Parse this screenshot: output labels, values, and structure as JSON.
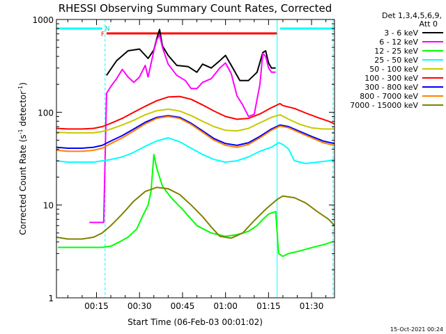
{
  "chart_data": {
    "type": "line",
    "title": "RHESSI Observing Summary Count Rates, Corrected",
    "xlabel": "Start Time (06-Feb-03 00:01:02)",
    "ylabel": "Corrected Count Rate (s⁻¹ detector⁻¹)",
    "ylabel_main": "Corrected Count Rate (s",
    "ylabel_sup1": "-1",
    "ylabel_mid": " detector",
    "ylabel_sup2": "-1",
    "ylabel_end": ")",
    "yscale": "log",
    "ylim": [
      1,
      1000
    ],
    "xlim": [
      1.03,
      98
    ],
    "y_tick_labels": [
      "1",
      "10",
      "100",
      "1000"
    ],
    "y_ticks": [
      1,
      10,
      100,
      1000
    ],
    "x_tick_labels": [
      "00:15",
      "00:30",
      "00:45",
      "01:00",
      "01:15",
      "01:30"
    ],
    "x_ticks": [
      15,
      30,
      45,
      60,
      75,
      90
    ],
    "x_unit": "minutes after 00:00 UT",
    "legend_header": [
      "Det 1,3,4,5,6,9,",
      "Att 0"
    ],
    "legend_placement": "right",
    "series": [
      {
        "name": "3 - 6 keV",
        "color": "#000000",
        "x": [
          18.5,
          22,
          26,
          30,
          33,
          35,
          36,
          37,
          38,
          40,
          43,
          47,
          50,
          52,
          55,
          58,
          60,
          62,
          65,
          68,
          71,
          73,
          74,
          75,
          76,
          77.5
        ],
        "y": [
          250,
          360,
          460,
          480,
          380,
          470,
          620,
          780,
          520,
          410,
          320,
          310,
          270,
          330,
          300,
          360,
          410,
          320,
          220,
          220,
          270,
          440,
          460,
          340,
          300,
          300
        ]
      },
      {
        "name": "6 - 12 keV",
        "color": "#ff00ff",
        "x": [
          12.5,
          17.5,
          18.5,
          20,
          22,
          24,
          26,
          28,
          30,
          32,
          33,
          35,
          36,
          37,
          38,
          40,
          43,
          46,
          48,
          50,
          52,
          55,
          58,
          60,
          62,
          64,
          66,
          68,
          70,
          72,
          73,
          74,
          75,
          76,
          77.5
        ],
        "y": [
          6.5,
          6.5,
          160,
          190,
          230,
          290,
          240,
          210,
          240,
          320,
          240,
          460,
          600,
          680,
          500,
          330,
          250,
          220,
          180,
          180,
          210,
          230,
          300,
          340,
          260,
          150,
          120,
          90,
          95,
          200,
          430,
          400,
          300,
          270,
          270
        ]
      },
      {
        "name": "12 - 25 keV",
        "color": "#00ff00",
        "x": [
          1.5,
          5,
          10,
          14,
          17,
          20,
          23,
          26,
          29,
          31,
          33,
          34,
          35,
          36,
          38,
          41,
          45,
          50,
          55,
          60,
          64,
          68,
          71,
          73,
          75,
          77.5,
          78.5,
          80,
          82,
          84,
          86,
          89,
          92,
          95,
          97
        ],
        "y": [
          3.5,
          3.5,
          3.5,
          3.5,
          3.5,
          3.6,
          4.0,
          4.5,
          5.5,
          7.5,
          10,
          14,
          35,
          25,
          16,
          12,
          9,
          6,
          5,
          4.6,
          4.8,
          5.2,
          6,
          7,
          8,
          8.5,
          3.0,
          2.8,
          3.0,
          3.1,
          3.2,
          3.4,
          3.6,
          3.8,
          4.0
        ]
      },
      {
        "name": "25 - 50 keV",
        "color": "#00ffff",
        "x": [
          1,
          5,
          10,
          14,
          17,
          20,
          24,
          28,
          32,
          36,
          40,
          44,
          48,
          52,
          56,
          60,
          64,
          68,
          72,
          76,
          78.5,
          80,
          82,
          84,
          88,
          92,
          96,
          98
        ],
        "y": [
          30,
          29,
          29,
          29,
          30,
          31,
          33,
          37,
          43,
          49,
          53,
          48,
          41,
          35,
          31,
          29,
          30,
          33,
          38,
          42,
          47,
          45,
          40,
          30,
          28,
          29,
          30,
          31
        ]
      },
      {
        "name": "50 - 100 keV",
        "color": "#c8c800",
        "x": [
          1,
          5,
          10,
          14,
          17,
          20,
          24,
          28,
          32,
          36,
          40,
          44,
          48,
          52,
          56,
          60,
          64,
          68,
          72,
          76,
          79,
          82,
          86,
          90,
          94,
          98
        ],
        "y": [
          61,
          60,
          60,
          60,
          62,
          66,
          73,
          82,
          94,
          104,
          108,
          103,
          92,
          80,
          70,
          64,
          63,
          67,
          77,
          88,
          94,
          84,
          74,
          68,
          66,
          66
        ]
      },
      {
        "name": "100 - 300 keV",
        "color": "#ff0000",
        "x": [
          1,
          5,
          10,
          14,
          17,
          20,
          24,
          28,
          32,
          36,
          40,
          44,
          48,
          52,
          56,
          60,
          64,
          68,
          72,
          76,
          79,
          80,
          84,
          88,
          92,
          96,
          98
        ],
        "y": [
          67,
          66,
          66,
          67,
          70,
          76,
          86,
          100,
          116,
          133,
          146,
          148,
          138,
          120,
          103,
          90,
          84,
          86,
          96,
          112,
          124,
          118,
          110,
          98,
          88,
          80,
          75
        ]
      },
      {
        "name": "300 - 800 keV",
        "color": "#0000ff",
        "x": [
          1,
          5,
          10,
          14,
          17,
          20,
          24,
          28,
          32,
          36,
          40,
          44,
          48,
          52,
          56,
          60,
          64,
          68,
          72,
          76,
          79,
          82,
          86,
          90,
          94,
          98
        ],
        "y": [
          42,
          41,
          41,
          42,
          44,
          49,
          56,
          66,
          78,
          88,
          92,
          88,
          76,
          63,
          52,
          46,
          44,
          47,
          55,
          66,
          73,
          70,
          62,
          55,
          49,
          46
        ]
      },
      {
        "name": "800 - 7000 keV",
        "color": "#ff8000",
        "x": [
          1,
          5,
          10,
          14,
          17,
          20,
          24,
          28,
          32,
          36,
          40,
          44,
          48,
          52,
          56,
          60,
          64,
          68,
          72,
          76,
          79,
          82,
          86,
          90,
          94,
          98
        ],
        "y": [
          39,
          38,
          38,
          39,
          41,
          46,
          53,
          63,
          75,
          86,
          90,
          86,
          74,
          61,
          50,
          44,
          42,
          45,
          53,
          64,
          71,
          68,
          60,
          53,
          47,
          44
        ]
      },
      {
        "name": "7000 - 15000 keV",
        "color": "#808000",
        "x": [
          1,
          5,
          10,
          14,
          17,
          20,
          24,
          28,
          32,
          36,
          40,
          44,
          48,
          52,
          55,
          58,
          62,
          66,
          70,
          74,
          78,
          80,
          84,
          88,
          92,
          96,
          98
        ],
        "y": [
          4.5,
          4.3,
          4.3,
          4.5,
          5.0,
          6.0,
          8.0,
          11,
          14,
          15.5,
          15,
          13,
          10,
          7.5,
          5.8,
          4.6,
          4.4,
          5.0,
          6.8,
          9.0,
          11.5,
          12.5,
          12,
          10.5,
          8.5,
          7,
          6
        ]
      }
    ],
    "annotations": {
      "attenuator_flags": [
        {
          "label": "F",
          "color": "#ff0000",
          "x_start": 18.5,
          "x_end": 78
        },
        {
          "label": "N",
          "color": "#00c8c8",
          "x_start": 1.03,
          "x_end": 17,
          "x2_start": 79,
          "x2_end": 98
        }
      ],
      "vertical_markers": [
        {
          "x": 18,
          "color": "#00ffff",
          "style": "dashed"
        },
        {
          "x": 78,
          "color": "#00ffff",
          "style": "solid"
        },
        {
          "x": 97.5,
          "color": "#00ffff",
          "style": "dashed"
        }
      ],
      "timestamp": "15-Oct-2021 00:24"
    }
  }
}
